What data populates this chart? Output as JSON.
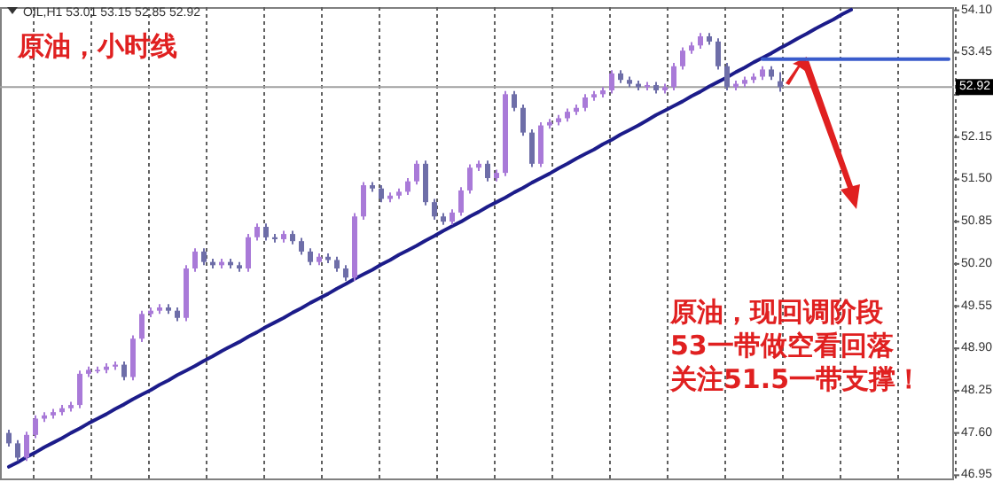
{
  "chart_data": {
    "type": "candlestick",
    "title": "原油，小时线",
    "annotations": [
      "OIL,H1 53.01 53.15 52.85 52.92",
      "原油，现回调阶段",
      "53一带做空看回落",
      "关注51.5一带支撑！"
    ],
    "categories": [
      null,
      null,
      null,
      null,
      null,
      null,
      null,
      null,
      null,
      null,
      null,
      null,
      null,
      null,
      null,
      null,
      null,
      null,
      null,
      null,
      null,
      null,
      null,
      null,
      null,
      null,
      null,
      null,
      null,
      null,
      null,
      null,
      null,
      null,
      null,
      null,
      null,
      null,
      null,
      null,
      null,
      null,
      null,
      null,
      null,
      null,
      null,
      null,
      null,
      null,
      null,
      null,
      null,
      null,
      null,
      null,
      null,
      null,
      null,
      null,
      null,
      null,
      null,
      null,
      null,
      null,
      null,
      null,
      null,
      null,
      null,
      null,
      null,
      null,
      null,
      null,
      null,
      null,
      null,
      null,
      null,
      null,
      null,
      null,
      null,
      null,
      null,
      null,
      null,
      null,
      null,
      null,
      null,
      null,
      null,
      null,
      null,
      null,
      null,
      null,
      null,
      null,
      null,
      null,
      null,
      null,
      null
    ],
    "ylim": [
      46.9,
      54.15
    ],
    "yticks": [
      {
        "value": 54.1,
        "label": "54.10"
      },
      {
        "value": 53.45,
        "label": "53.45"
      },
      {
        "value": 52.8,
        "label": null
      },
      {
        "value": 52.15,
        "label": "52.15"
      },
      {
        "value": 51.5,
        "label": "51.50"
      },
      {
        "value": 50.85,
        "label": "50.85"
      },
      {
        "value": 50.2,
        "label": "50.20"
      },
      {
        "value": 49.55,
        "label": "49.55"
      },
      {
        "value": 48.9,
        "label": "48.90"
      },
      {
        "value": 48.25,
        "label": "48.25"
      },
      {
        "value": 47.6,
        "label": "47.60"
      },
      {
        "value": 46.95,
        "label": "46.95"
      }
    ],
    "tick_labels": "y",
    "ref_lines": [
      {
        "axis": "y",
        "value": 52.92,
        "label": "52.92",
        "color": "#a0a0a0"
      }
    ],
    "series": [
      {
        "colors": [
          "#6e6ea8",
          "#6e6ea8",
          "#a97ad8",
          "#a97ad8",
          "#a97ad8",
          "#a97ad8",
          "#a97ad8",
          "#a97ad8",
          "#a97ad8",
          "#a97ad8",
          "#a97ad8",
          "#a97ad8",
          "#a97ad8",
          "#6e6ea8",
          "#a97ad8",
          "#a97ad8",
          "#a97ad8",
          "#a97ad8",
          "#6e6ea8",
          "#6e6ea8",
          "#a97ad8",
          "#a97ad8",
          "#6e6ea8",
          "#6e6ea8",
          "#a97ad8",
          "#6e6ea8",
          "#6e6ea8",
          "#a97ad8",
          "#a97ad8",
          "#6e6ea8",
          "#6e6ea8",
          "#a97ad8",
          "#6e6ea8",
          "#6e6ea8",
          "#6e6ea8",
          "#a97ad8",
          "#6e6ea8",
          "#6e6ea8",
          "#6e6ea8",
          "#a97ad8",
          "#a97ad8",
          "#6e6ea8",
          "#6e6ea8",
          "#a97ad8",
          "#a97ad8",
          "#a97ad8",
          "#a97ad8",
          "#6e6ea8",
          "#6e6ea8",
          "#6e6ea8",
          "#a97ad8",
          "#a97ad8",
          "#a97ad8",
          "#a97ad8",
          "#6e6ea8",
          "#a97ad8",
          "#a97ad8",
          "#6e6ea8",
          "#6e6ea8",
          "#6e6ea8",
          "#a97ad8",
          "#a97ad8",
          "#a97ad8",
          "#a97ad8",
          "#a97ad8",
          "#a97ad8",
          "#a97ad8",
          "#a97ad8",
          "#a97ad8",
          "#6e6ea8",
          "#6e6ea8",
          "#6e6ea8",
          "#a97ad8",
          "#6e6ea8",
          "#a97ad8",
          "#a97ad8",
          "#a97ad8",
          "#a97ad8",
          "#a97ad8",
          "#6e6ea8",
          "#6e6ea8",
          "#6e6ea8",
          "#a97ad8",
          "#a97ad8",
          "#a97ad8",
          "#a97ad8",
          "#6e6ea8",
          "#6e6ea8",
          null,
          null,
          null,
          null,
          null,
          null,
          null,
          null,
          null,
          null,
          null,
          null,
          null,
          null,
          null,
          null,
          null,
          null,
          null
        ],
        "ohlc": [
          [
            47.6,
            47.65,
            47.39,
            47.44
          ],
          [
            47.44,
            47.49,
            47.17,
            47.22
          ],
          [
            47.22,
            47.62,
            47.17,
            47.57
          ],
          [
            47.57,
            47.87,
            47.52,
            47.82
          ],
          [
            47.82,
            47.92,
            47.77,
            47.87
          ],
          [
            47.87,
            47.97,
            47.82,
            47.92
          ],
          [
            47.92,
            48.03,
            47.87,
            47.98
          ],
          [
            47.98,
            48.08,
            47.93,
            48.03
          ],
          [
            48.03,
            48.56,
            47.98,
            48.51
          ],
          [
            48.51,
            48.62,
            48.46,
            48.57
          ],
          [
            48.57,
            48.62,
            48.52,
            48.57
          ],
          [
            48.57,
            48.67,
            48.52,
            48.62
          ],
          [
            48.62,
            48.7,
            48.57,
            48.65
          ],
          [
            48.65,
            48.7,
            48.41,
            48.46
          ],
          [
            48.46,
            49.1,
            48.41,
            49.05
          ],
          [
            49.05,
            49.48,
            49.0,
            49.43
          ],
          [
            49.43,
            49.53,
            49.38,
            49.48
          ],
          [
            49.48,
            49.58,
            49.43,
            49.53
          ],
          [
            49.53,
            49.58,
            49.43,
            49.48
          ],
          [
            49.48,
            49.53,
            49.32,
            49.37
          ],
          [
            49.37,
            50.18,
            49.32,
            50.13
          ],
          [
            50.13,
            50.44,
            50.08,
            50.39
          ],
          [
            50.39,
            50.44,
            50.18,
            50.23
          ],
          [
            50.23,
            50.28,
            50.13,
            50.18
          ],
          [
            50.18,
            50.28,
            50.13,
            50.23
          ],
          [
            50.23,
            50.28,
            50.13,
            50.18
          ],
          [
            50.18,
            50.23,
            50.08,
            50.13
          ],
          [
            50.13,
            50.66,
            50.08,
            50.61
          ],
          [
            50.61,
            50.82,
            50.56,
            50.77
          ],
          [
            50.77,
            50.82,
            50.56,
            50.61
          ],
          [
            50.61,
            50.66,
            50.53,
            50.58
          ],
          [
            50.58,
            50.71,
            50.53,
            50.66
          ],
          [
            50.66,
            50.71,
            50.5,
            50.55
          ],
          [
            50.55,
            50.6,
            50.34,
            50.39
          ],
          [
            50.39,
            50.44,
            50.18,
            50.23
          ],
          [
            50.23,
            50.36,
            50.18,
            50.31
          ],
          [
            50.31,
            50.36,
            50.21,
            50.26
          ],
          [
            50.26,
            50.31,
            50.08,
            50.13
          ],
          [
            50.13,
            50.18,
            49.94,
            49.99
          ],
          [
            49.99,
            50.98,
            49.94,
            50.93
          ],
          [
            50.93,
            51.46,
            50.88,
            51.41
          ],
          [
            51.41,
            51.46,
            51.31,
            51.36
          ],
          [
            51.36,
            51.41,
            51.15,
            51.2
          ],
          [
            51.2,
            51.3,
            51.15,
            51.25
          ],
          [
            51.25,
            51.36,
            51.2,
            51.31
          ],
          [
            51.31,
            51.52,
            51.26,
            51.47
          ],
          [
            51.47,
            51.79,
            51.42,
            51.74
          ],
          [
            51.74,
            51.79,
            51.1,
            51.15
          ],
          [
            51.15,
            51.2,
            50.88,
            50.93
          ],
          [
            50.93,
            50.98,
            50.8,
            50.85
          ],
          [
            50.85,
            51.04,
            50.8,
            50.99
          ],
          [
            50.99,
            51.38,
            50.94,
            51.33
          ],
          [
            51.33,
            51.73,
            51.28,
            51.68
          ],
          [
            51.68,
            51.79,
            51.63,
            51.74
          ],
          [
            51.74,
            51.79,
            51.47,
            51.52
          ],
          [
            51.52,
            51.65,
            51.47,
            51.6
          ],
          [
            51.6,
            52.86,
            51.55,
            52.81
          ],
          [
            52.81,
            52.86,
            52.55,
            52.6
          ],
          [
            52.6,
            52.65,
            52.17,
            52.22
          ],
          [
            52.22,
            52.27,
            51.69,
            51.74
          ],
          [
            51.74,
            52.38,
            51.69,
            52.33
          ],
          [
            52.33,
            52.43,
            52.28,
            52.38
          ],
          [
            52.38,
            52.49,
            52.33,
            52.44
          ],
          [
            52.44,
            52.59,
            52.39,
            52.54
          ],
          [
            52.54,
            52.65,
            52.49,
            52.6
          ],
          [
            52.6,
            52.81,
            52.55,
            52.76
          ],
          [
            52.76,
            52.86,
            52.71,
            52.81
          ],
          [
            52.81,
            52.92,
            52.76,
            52.87
          ],
          [
            52.87,
            53.18,
            52.82,
            53.13
          ],
          [
            53.13,
            53.18,
            52.98,
            53.03
          ],
          [
            53.03,
            53.08,
            52.92,
            52.97
          ],
          [
            52.97,
            53.02,
            52.87,
            52.92
          ],
          [
            52.92,
            53.0,
            52.87,
            52.95
          ],
          [
            52.95,
            53.0,
            52.82,
            52.87
          ],
          [
            52.87,
            52.97,
            52.82,
            52.92
          ],
          [
            52.92,
            53.29,
            52.87,
            53.24
          ],
          [
            53.24,
            53.53,
            53.19,
            53.48
          ],
          [
            53.48,
            53.61,
            53.43,
            53.56
          ],
          [
            53.56,
            53.75,
            53.51,
            53.7
          ],
          [
            53.7,
            53.75,
            53.57,
            53.62
          ],
          [
            53.62,
            53.67,
            53.19,
            53.24
          ],
          [
            53.24,
            53.29,
            52.87,
            52.92
          ],
          [
            52.92,
            53.02,
            52.87,
            52.97
          ],
          [
            52.97,
            53.08,
            52.92,
            53.03
          ],
          [
            53.03,
            53.13,
            52.98,
            53.08
          ],
          [
            53.08,
            53.24,
            53.03,
            53.19
          ],
          [
            53.19,
            53.24,
            53.03,
            53.08
          ],
          [
            53.01,
            53.15,
            52.85,
            52.92
          ],
          null,
          null,
          null,
          null,
          null,
          null,
          null,
          null,
          null,
          null,
          null,
          null,
          null,
          null,
          null,
          null,
          null,
          null,
          null
        ]
      },
      {
        "type": "line",
        "color": "#1c1c8a",
        "values": [
          47.08,
          47.15,
          47.23,
          47.3,
          47.38,
          47.45,
          47.52,
          47.6,
          47.67,
          47.75,
          47.82,
          47.89,
          47.97,
          48.04,
          48.12,
          48.19,
          48.26,
          48.34,
          48.41,
          48.49,
          48.56,
          48.63,
          48.71,
          48.78,
          48.86,
          48.93,
          49.0,
          49.08,
          49.15,
          49.23,
          49.3,
          49.37,
          49.45,
          49.52,
          49.6,
          49.67,
          49.74,
          49.82,
          49.89,
          49.97,
          50.04,
          50.11,
          50.19,
          50.26,
          50.34,
          50.41,
          50.48,
          50.56,
          50.63,
          50.71,
          50.78,
          50.85,
          50.93,
          51.0,
          51.08,
          51.15,
          51.22,
          51.3,
          51.37,
          51.45,
          51.52,
          51.59,
          51.67,
          51.74,
          51.82,
          51.89,
          51.96,
          52.04,
          52.11,
          52.19,
          52.26,
          52.33,
          52.41,
          52.49,
          52.56,
          52.63,
          52.7,
          52.78,
          52.85,
          52.93,
          53.0,
          53.07,
          53.15,
          53.22,
          53.3,
          53.37,
          53.44,
          53.52,
          53.59,
          53.67,
          53.74,
          53.82,
          53.89,
          53.96,
          54.04,
          54.11,
          null,
          null,
          null,
          null,
          null,
          null,
          null,
          null,
          null,
          null,
          null
        ]
      },
      {
        "type": "line",
        "color": "#3a5ccc",
        "values": [
          null,
          null,
          null,
          null,
          null,
          null,
          null,
          null,
          null,
          null,
          null,
          null,
          null,
          null,
          null,
          null,
          null,
          null,
          null,
          null,
          null,
          null,
          null,
          null,
          null,
          null,
          null,
          null,
          null,
          null,
          null,
          null,
          null,
          null,
          null,
          null,
          null,
          null,
          null,
          null,
          null,
          null,
          null,
          null,
          null,
          null,
          null,
          null,
          null,
          null,
          null,
          null,
          null,
          null,
          null,
          null,
          null,
          null,
          null,
          null,
          null,
          null,
          null,
          null,
          null,
          null,
          null,
          null,
          null,
          null,
          null,
          null,
          null,
          null,
          null,
          null,
          null,
          null,
          null,
          null,
          null,
          null,
          null,
          null,
          null,
          53.35,
          53.35,
          53.35,
          53.35,
          53.35,
          53.35,
          53.35,
          53.35,
          53.35,
          53.35,
          53.35,
          53.35,
          53.35,
          53.35,
          53.35,
          53.35,
          53.35,
          53.35,
          53.35,
          53.35,
          53.35,
          53.35
        ]
      }
    ]
  }
}
